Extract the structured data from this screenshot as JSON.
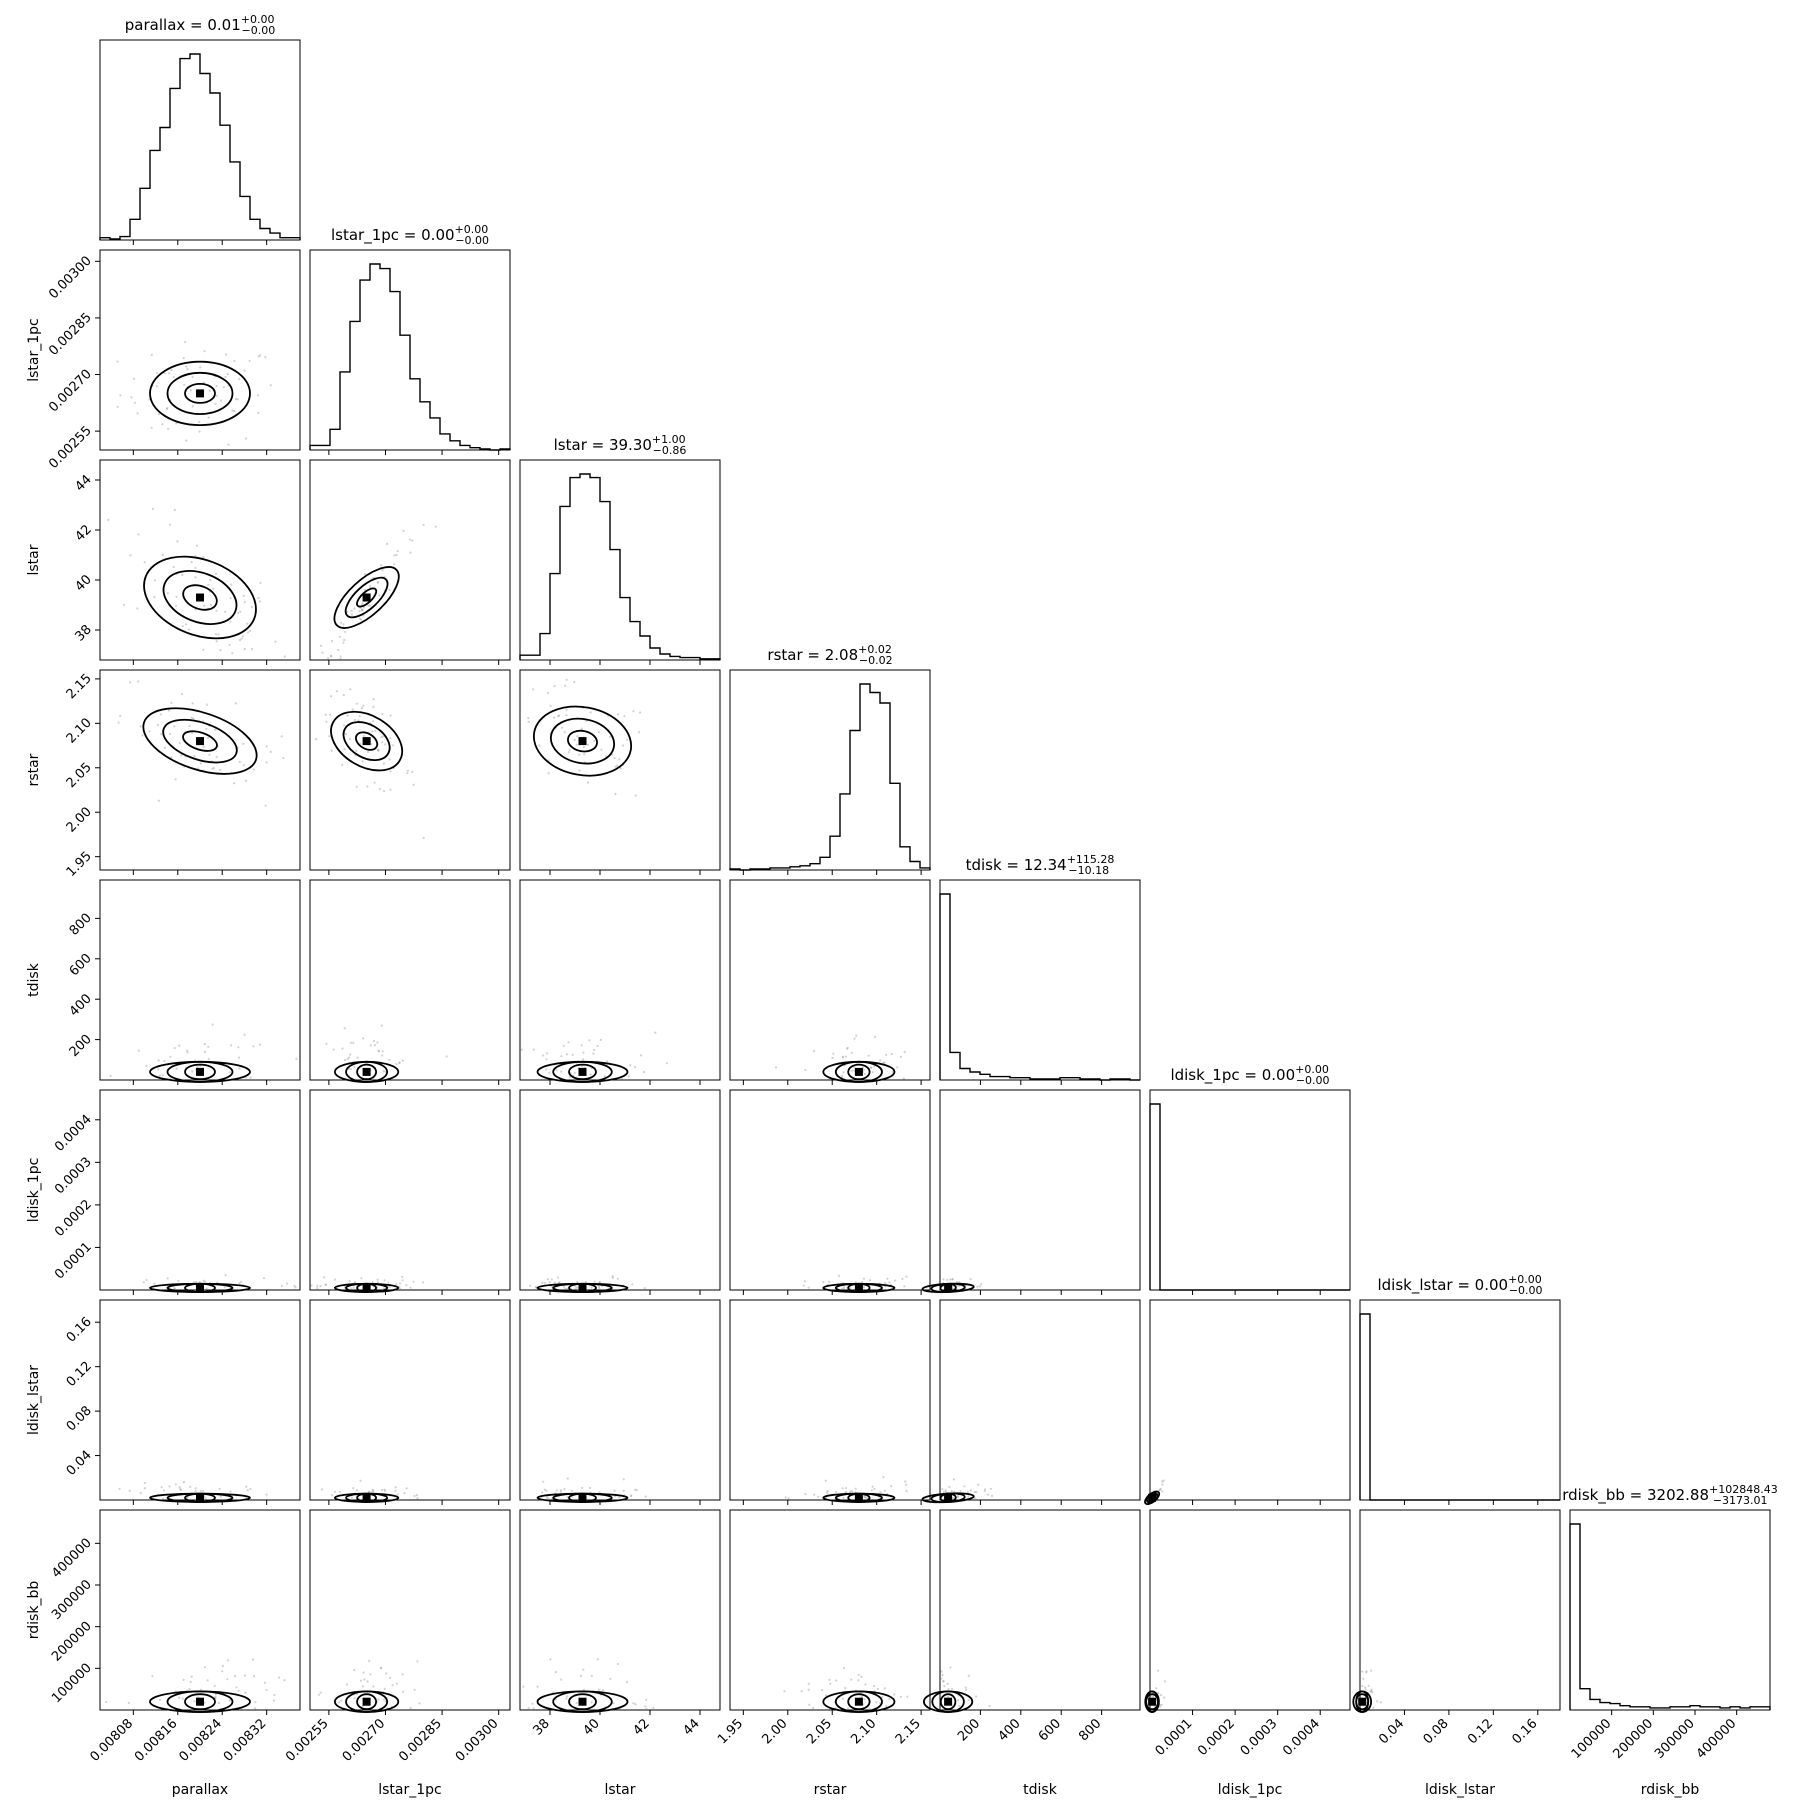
{
  "chart_data": {
    "type": "corner",
    "parameters": [
      {
        "name": "parallax",
        "label": "parallax",
        "median": "0.01",
        "plus": "+0.00",
        "minus": "−0.00",
        "range": [
          0.00802,
          0.00838
        ],
        "ticks": [
          0.00808,
          0.00816,
          0.00824,
          0.00832
        ],
        "tick_labels": [
          "0.00808",
          "0.00816",
          "0.00824",
          "0.00832"
        ],
        "center": 0.0082,
        "sigma": 4.5e-05,
        "hist": [
          2,
          1,
          3,
          18,
          45,
          78,
          98,
          132,
          158,
          162,
          145,
          128,
          100,
          68,
          38,
          18,
          10,
          6,
          2,
          2
        ]
      },
      {
        "name": "lstar_1pc",
        "label": "lstar_1pc",
        "median": "0.00",
        "plus": "+0.00",
        "minus": "−0.00",
        "range": [
          0.0025,
          0.00303
        ],
        "ticks": [
          0.00255,
          0.0027,
          0.00285,
          0.003
        ],
        "tick_labels": [
          "0.00255",
          "0.00270",
          "0.00285",
          "0.00300"
        ],
        "center": 0.00265,
        "sigma": 4.2e-05,
        "hist": [
          4,
          4,
          18,
          68,
          112,
          148,
          162,
          158,
          138,
          100,
          62,
          42,
          28,
          14,
          8,
          4,
          2,
          1,
          0,
          1
        ]
      },
      {
        "name": "lstar",
        "label": "lstar",
        "median": "39.30",
        "plus": "+1.00",
        "minus": "−0.86",
        "range": [
          36.8,
          44.8
        ],
        "ticks": [
          38,
          40,
          42,
          44
        ],
        "tick_labels": [
          "38",
          "40",
          "42",
          "44"
        ],
        "center": 39.3,
        "sigma": 0.9,
        "hist": [
          4,
          4,
          22,
          72,
          128,
          152,
          155,
          152,
          132,
          92,
          52,
          32,
          20,
          10,
          5,
          3,
          2,
          2,
          1,
          1
        ]
      },
      {
        "name": "rstar",
        "label": "rstar",
        "median": "2.08",
        "plus": "+0.02",
        "minus": "−0.02",
        "range": [
          1.935,
          2.16
        ],
        "ticks": [
          1.95,
          2.0,
          2.05,
          2.1,
          2.15
        ],
        "tick_labels": [
          "1.95",
          "2.00",
          "2.05",
          "2.10",
          "2.15"
        ],
        "center": 2.08,
        "sigma": 0.02,
        "hist": [
          1,
          0,
          1,
          1,
          2,
          2,
          3,
          4,
          6,
          12,
          32,
          72,
          132,
          176,
          168,
          158,
          82,
          22,
          8,
          2
        ]
      },
      {
        "name": "tdisk",
        "label": "tdisk",
        "median": "12.34",
        "plus": "+115.28",
        "minus": "−10.18",
        "range": [
          0,
          990
        ],
        "ticks": [
          200,
          400,
          600,
          800
        ],
        "tick_labels": [
          "200",
          "400",
          "600",
          "800"
        ],
        "center": 40,
        "sigma": 60,
        "hist": [
          162,
          24,
          10,
          7,
          5,
          3,
          3,
          2,
          2,
          1,
          1,
          1,
          2,
          2,
          1,
          1,
          0,
          1,
          1,
          0
        ]
      },
      {
        "name": "ldisk_1pc",
        "label": "ldisk_1pc",
        "median": "0.00",
        "plus": "+0.00",
        "minus": "−0.00",
        "range": [
          0,
          0.00047
        ],
        "ticks": [
          0.0001,
          0.0002,
          0.0003,
          0.0004
        ],
        "tick_labels": [
          "0.0001",
          "0.0002",
          "0.0003",
          "0.0004"
        ],
        "center": 5e-06,
        "sigma": 8e-06,
        "hist": [
          230,
          0,
          0,
          0,
          0,
          0,
          0,
          0,
          0,
          0,
          0,
          0,
          0,
          0,
          0,
          0,
          0,
          0,
          0,
          0
        ]
      },
      {
        "name": "ldisk_lstar",
        "label": "ldisk_lstar",
        "median": "0.00",
        "plus": "+0.00",
        "minus": "−0.00",
        "range": [
          0,
          0.18
        ],
        "ticks": [
          0.04,
          0.08,
          0.12,
          0.16
        ],
        "tick_labels": [
          "0.04",
          "0.08",
          "0.12",
          "0.16"
        ],
        "center": 0.002,
        "sigma": 0.004,
        "hist": [
          230,
          0,
          0,
          0,
          0,
          0,
          0,
          0,
          0,
          0,
          0,
          0,
          0,
          0,
          0,
          0,
          0,
          0,
          0,
          0
        ]
      },
      {
        "name": "rdisk_bb",
        "label": "rdisk_bb",
        "median": "3202.88",
        "plus": "+102848.43",
        "minus": "−3173.01",
        "range": [
          0,
          480000
        ],
        "ticks": [
          100000,
          200000,
          300000,
          400000
        ],
        "tick_labels": [
          "100000",
          "200000",
          "300000",
          "400000"
        ],
        "center": 20000,
        "sigma": 30000,
        "hist": [
          175,
          20,
          10,
          7,
          6,
          4,
          3,
          3,
          2,
          2,
          3,
          3,
          4,
          3,
          3,
          2,
          3,
          2,
          3,
          3
        ]
      }
    ],
    "correlations": [
      [
        1,
        0,
        -0.55,
        -0.6,
        0,
        0,
        0,
        0
      ],
      [
        0,
        1,
        0.95,
        -0.7,
        0,
        0,
        0,
        0
      ],
      [
        -0.55,
        0.95,
        1,
        -0.3,
        0,
        0,
        0,
        0
      ],
      [
        -0.6,
        -0.7,
        -0.3,
        1,
        0,
        0,
        0,
        0
      ],
      [
        0,
        0,
        0,
        0,
        1,
        0.2,
        0.2,
        0
      ],
      [
        0,
        0,
        0,
        0,
        0.2,
        1,
        0.9,
        0
      ],
      [
        0,
        0,
        0,
        0,
        0.2,
        0.9,
        1,
        0
      ],
      [
        0,
        0,
        0,
        0,
        0,
        0,
        0,
        1
      ]
    ],
    "grid": false,
    "contour_levels": 3
  }
}
